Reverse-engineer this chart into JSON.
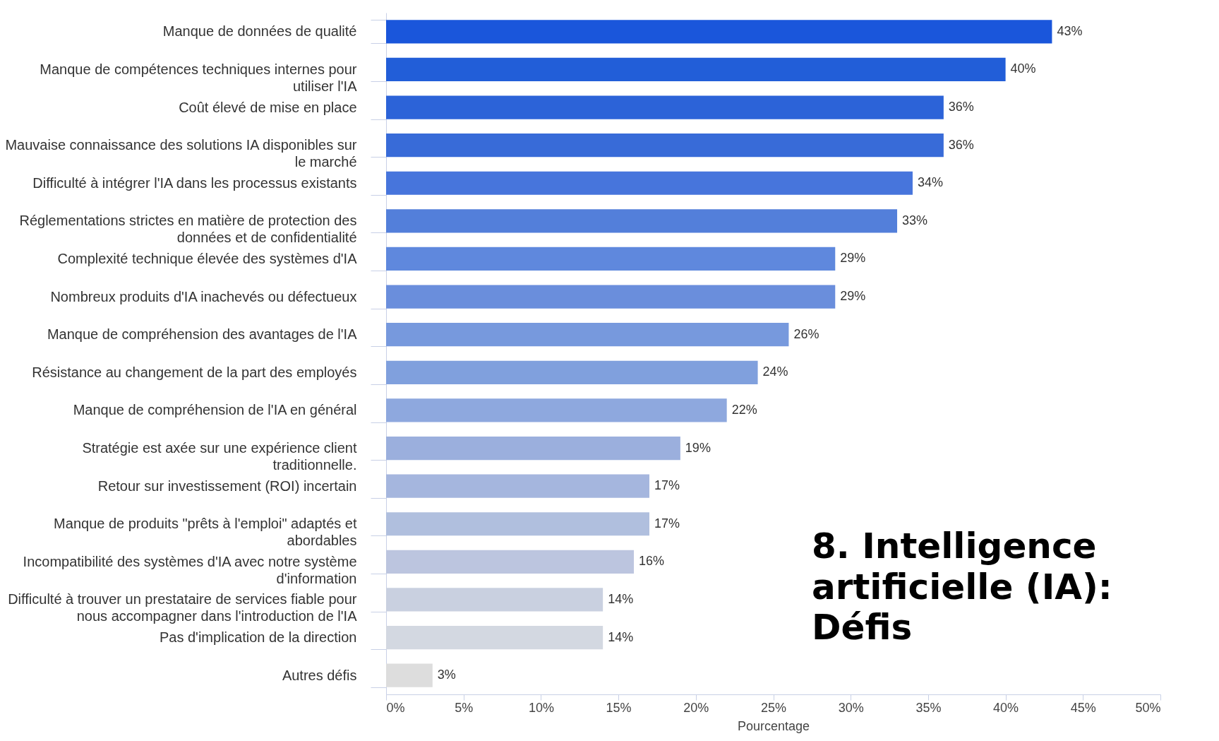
{
  "chart_data": {
    "type": "bar",
    "orientation": "horizontal",
    "title": "8. Intelligence artificielle (IA): Défis",
    "xlabel": "Pourcentage",
    "categories": [
      "Manque de données de qualité",
      "Manque de compétences techniques internes pour utiliser l'IA",
      "Coût élevé de mise en place",
      "Mauvaise connaissance des solutions IA disponibles sur le marché",
      "Difficulté à intégrer l'IA dans les processus existants",
      "Réglementations strictes en matière de protection des données et de confidentialité",
      "Complexité technique élevée des systèmes d'IA",
      "Nombreux produits d'IA inachevés ou défectueux",
      "Manque de compréhension des avantages de l'IA",
      "Résistance au changement de la part des employés",
      "Manque de compréhension de l'IA en général",
      "Stratégie est axée sur une expérience client traditionnelle.",
      "Retour sur investissement (ROI) incertain",
      "Manque de produits \"prêts à l'emploi\" adaptés et abordables",
      "Incompatibilité des systèmes d'IA avec notre système d'information",
      "Difficulté à trouver un prestataire de services fiable pour nous accompagner dans l'introduction de l'IA",
      "Pas d'implication de la direction",
      "Autres défis"
    ],
    "values": [
      43,
      40,
      36,
      36,
      34,
      33,
      29,
      29,
      26,
      24,
      22,
      19,
      17,
      17,
      16,
      14,
      14,
      3
    ],
    "value_labels": [
      "43%",
      "40%",
      "36%",
      "36%",
      "34%",
      "33%",
      "29%",
      "29%",
      "26%",
      "24%",
      "22%",
      "19%",
      "17%",
      "17%",
      "16%",
      "14%",
      "14%",
      "3%"
    ],
    "colors": [
      "#1a56db",
      "#225ed8",
      "#2c63d8",
      "#386bd8",
      "#4775dc",
      "#537fda",
      "#5f88dd",
      "#6a8edc",
      "#7799dd",
      "#80a0dd",
      "#8ea8de",
      "#9bafdd",
      "#a5b6de",
      "#b0bfde",
      "#bcc5df",
      "#c9d0e0",
      "#d3d8e1",
      "#dddddd"
    ],
    "xlim": [
      0,
      50
    ],
    "xticks": [
      {
        "value": 0,
        "label": "0%"
      },
      {
        "value": 5,
        "label": "5%"
      },
      {
        "value": 10,
        "label": "10%"
      },
      {
        "value": 15,
        "label": "15%"
      },
      {
        "value": 20,
        "label": "20%"
      },
      {
        "value": 25,
        "label": "25%"
      },
      {
        "value": 30,
        "label": "30%"
      },
      {
        "value": 35,
        "label": "35%"
      },
      {
        "value": 40,
        "label": "40%"
      },
      {
        "value": 45,
        "label": "45%"
      },
      {
        "value": 50,
        "label": "50%"
      }
    ],
    "grid": false
  }
}
